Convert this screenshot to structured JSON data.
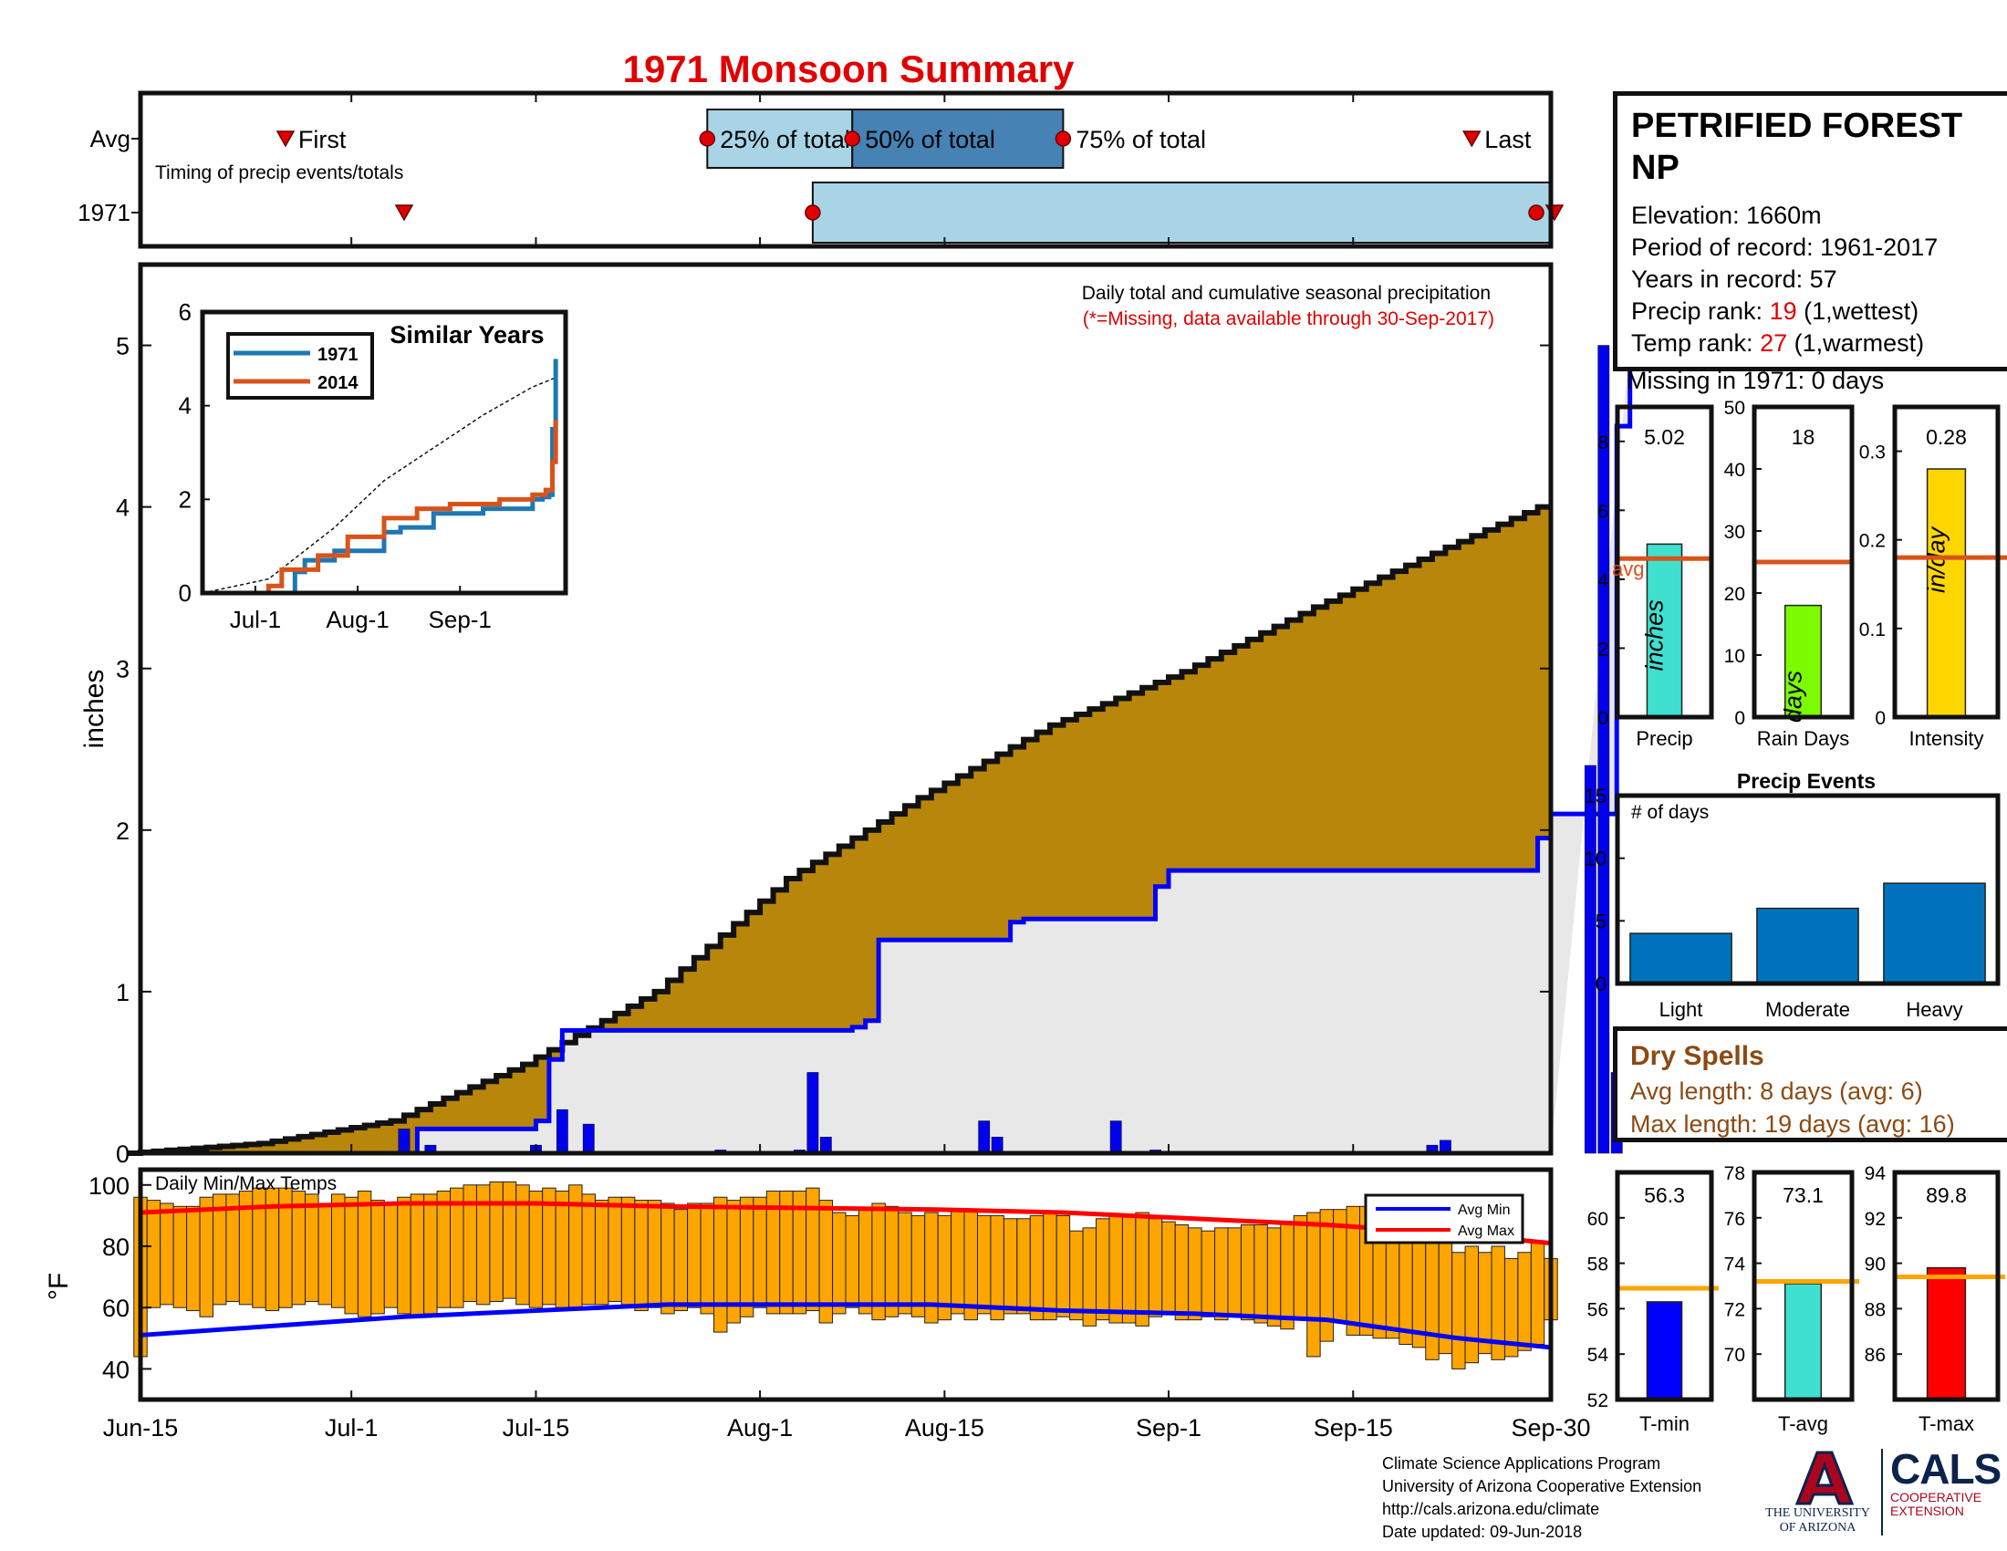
{
  "header": {
    "title": "1971 Monsoon Summary"
  },
  "station": {
    "name_line1": "PETRIFIED FOREST",
    "name_line2": "NP",
    "elevation_label": "Elevation: 1660m",
    "period_label": "Period of record: 1961-2017",
    "years_label": "Years in record: 57",
    "precip_rank_prefix": "Precip rank: ",
    "precip_rank": "19",
    "precip_rank_suffix": " (1,wettest)",
    "temp_rank_prefix": "Temp rank: ",
    "temp_rank": "27",
    "temp_rank_suffix": " (1,warmest)",
    "missing_label": "Missing in 1971: 0 days"
  },
  "dry_spells": {
    "title": "Dry Spells",
    "avg_line": "Avg length: 8 days (avg: 6)",
    "max_line": "Max length: 19 days (avg: 16)"
  },
  "credits": {
    "line1": "Climate Science Applications Program",
    "line2": "University of Arizona Cooperative Extension",
    "line3": "http://cals.arizona.edu/climate",
    "line4": " Date updated: 09-Jun-2018",
    "ua_line1": "THE UNIVERSITY",
    "ua_line2": "OF ARIZONA",
    "cals_big": "CALS",
    "cals_line1": "COOPERATIVE",
    "cals_line2": "EXTENSION"
  },
  "colors": {
    "cum_fill": "#b8860b",
    "cum_line": "#111111",
    "avg_fill": "#e8e8e8",
    "avg_line": "#0000ff",
    "daily_bar": "#0000ee",
    "temp_bar": "#ffa500",
    "avg_min": "#0000ff",
    "avg_max": "#ff0000",
    "title": "#e00000",
    "box_light": "#a8d4e6",
    "box_dark": "#4682b4",
    "similar_1971": "#1f77b4",
    "similar_2014": "#d95319",
    "precip_bar": "#40e0d0",
    "raindays_bar": "#7cfc00",
    "intensity_bar": "#ffd700",
    "avg_ref": "#d95319",
    "events_bar": "#0072bd",
    "tmin_bar": "#0000ff",
    "tavg_bar": "#40e0d0",
    "tmax_bar": "#ff0000",
    "temp_ref": "#ffa500"
  },
  "chart_data": [
    {
      "id": "timing",
      "type": "table",
      "title": "Timing of precip events/totals",
      "x_ticks": [
        "Jun-15",
        "Jul-1",
        "Jul-15",
        "Aug-1",
        "Aug-15",
        "Sep-1",
        "Sep-15",
        "Sep-30"
      ],
      "rows": [
        {
          "label": "Avg",
          "first": "Jun-26",
          "p25": "Jul-28",
          "p50": "Aug-8",
          "p75": "Aug-24",
          "last": "Sep-24",
          "first_label": "First",
          "p25_label": "25% of total",
          "p50_label": "50% of total",
          "p75_label": "75% of total",
          "last_label": "Last"
        },
        {
          "label": "1971",
          "first": "Jul-5",
          "p25": "Aug-5",
          "p75": "Sep-30",
          "last": "Sep-30"
        }
      ]
    },
    {
      "id": "precip",
      "type": "area",
      "annotation_line1": "Daily total and cumulative seasonal precipitation",
      "annotation_line2": "(*=Missing, data available through 30-Sep-2017)",
      "ylabel": "inches",
      "ylim": [
        0,
        5.5
      ],
      "yticks": [
        0,
        1,
        2,
        3,
        4,
        5
      ],
      "x_ticks": [
        "Jun-15",
        "Jul-1",
        "Jul-15",
        "Aug-1",
        "Aug-15",
        "Sep-1",
        "Sep-15",
        "Sep-30"
      ],
      "x_start": "Jun-15",
      "x_end": "Sep-30",
      "cumulative_1971": {
        "day": [
          0,
          20,
          21,
          30,
          31,
          32,
          34,
          35,
          54,
          55,
          56,
          66,
          67,
          68,
          77,
          78,
          79,
          85,
          106,
          107,
          108,
          110,
          111,
          112,
          113
        ],
        "value": [
          0,
          0,
          0.15,
          0.2,
          0.58,
          0.76,
          0.76,
          0.76,
          0.78,
          0.82,
          1.32,
          1.43,
          1.45,
          1.45,
          1.65,
          1.75,
          1.75,
          1.75,
          1.95,
          2.1,
          2.1,
          2.1,
          2.1,
          4.5,
          5.0
        ]
      },
      "average_cumulative": {
        "day": [
          0,
          10,
          20,
          30,
          40,
          50,
          60,
          70,
          80,
          90,
          100,
          107,
          110,
          111
        ],
        "value": [
          0,
          0.06,
          0.2,
          0.55,
          1.0,
          1.7,
          2.2,
          2.65,
          2.98,
          3.38,
          3.75,
          4.0,
          4.33,
          4.43
        ]
      },
      "daily_1971": [
        {
          "day": 20,
          "value": 0.15
        },
        {
          "day": 22,
          "value": 0.05
        },
        {
          "day": 30,
          "value": 0.05
        },
        {
          "day": 32,
          "value": 0.27
        },
        {
          "day": 34,
          "value": 0.18
        },
        {
          "day": 44,
          "value": 0.02
        },
        {
          "day": 50,
          "value": 0.02
        },
        {
          "day": 51,
          "value": 0.5
        },
        {
          "day": 52,
          "value": 0.1
        },
        {
          "day": 64,
          "value": 0.2
        },
        {
          "day": 65,
          "value": 0.1
        },
        {
          "day": 74,
          "value": 0.2
        },
        {
          "day": 77,
          "value": 0.02
        },
        {
          "day": 98,
          "value": 0.05
        },
        {
          "day": 99,
          "value": 0.08
        },
        {
          "day": 110,
          "value": 2.4
        },
        {
          "day": 111,
          "value": 5.0
        },
        {
          "day": 112,
          "value": 0.5
        }
      ]
    },
    {
      "id": "similar_years",
      "type": "line",
      "title": "Similar Years",
      "ylim": [
        0,
        6
      ],
      "yticks": [
        0,
        2,
        4,
        6
      ],
      "x_ticks": [
        "Jul-1",
        "Aug-1",
        "Sep-1"
      ],
      "series": [
        {
          "name": "1971",
          "day": [
            0,
            20,
            28,
            31,
            40,
            55,
            60,
            70,
            85,
            100,
            103,
            105,
            106,
            107
          ],
          "value": [
            0,
            0,
            0.45,
            0.7,
            0.9,
            1.3,
            1.4,
            1.7,
            1.8,
            2.0,
            2.05,
            2.1,
            3.5,
            5.0
          ]
        },
        {
          "name": "2014",
          "day": [
            0,
            20,
            24,
            35,
            44,
            55,
            65,
            75,
            90,
            100,
            104,
            106,
            107
          ],
          "value": [
            0,
            0.15,
            0.5,
            0.8,
            1.2,
            1.6,
            1.8,
            1.9,
            2.0,
            2.1,
            2.2,
            2.8,
            3.7
          ]
        }
      ],
      "average": {
        "day": [
          0,
          20,
          40,
          55,
          70,
          85,
          100,
          107
        ],
        "value": [
          0,
          0.3,
          1.4,
          2.4,
          3.1,
          3.8,
          4.4,
          4.6
        ]
      }
    },
    {
      "id": "temps",
      "type": "bar",
      "title": "Daily Min/Max Temps",
      "ylabel": "°F",
      "ylim": [
        30,
        105
      ],
      "yticks": [
        40,
        60,
        80,
        100
      ],
      "legend": [
        "Avg Min",
        "Avg Max"
      ],
      "x_ticks": [
        "Jun-15",
        "Jul-1",
        "Jul-15",
        "Aug-1",
        "Aug-15",
        "Sep-1",
        "Sep-15",
        "Sep-30"
      ],
      "daily_max": [
        96,
        95,
        94,
        93,
        93,
        96,
        97,
        97,
        98,
        99,
        99,
        99,
        98,
        97,
        94,
        97,
        96,
        98,
        95,
        94,
        96,
        97,
        97,
        98,
        99,
        100,
        100,
        101,
        101,
        100,
        98,
        99,
        98,
        100,
        97,
        95,
        96,
        96,
        95,
        95,
        94,
        92,
        94,
        94,
        96,
        95,
        96,
        96,
        98,
        98,
        98,
        99,
        95,
        91,
        90,
        92,
        94,
        93,
        91,
        90,
        91,
        90,
        92,
        92,
        90,
        90,
        89,
        89,
        90,
        91,
        90,
        85,
        86,
        89,
        90,
        90,
        91,
        89,
        88,
        87,
        86,
        85,
        86,
        86,
        87,
        87,
        86,
        88,
        90,
        91,
        92,
        92,
        93,
        93,
        90,
        88,
        87,
        85,
        84,
        82,
        78,
        80,
        78,
        80,
        76,
        78,
        81,
        76
      ],
      "daily_min": [
        44,
        60,
        61,
        60,
        59,
        57,
        61,
        62,
        61,
        60,
        59,
        60,
        61,
        62,
        61,
        60,
        58,
        57,
        58,
        60,
        58,
        57,
        58,
        60,
        60,
        62,
        61,
        62,
        63,
        61,
        60,
        61,
        60,
        60,
        61,
        61,
        62,
        61,
        59,
        60,
        58,
        59,
        60,
        58,
        52,
        55,
        57,
        60,
        58,
        58,
        58,
        59,
        55,
        58,
        60,
        58,
        56,
        57,
        58,
        57,
        55,
        56,
        58,
        56,
        58,
        56,
        58,
        58,
        56,
        56,
        57,
        56,
        54,
        56,
        55,
        55,
        54,
        57,
        58,
        56,
        56,
        57,
        56,
        58,
        56,
        55,
        54,
        53,
        56,
        44,
        49,
        55,
        51,
        51,
        50,
        50,
        48,
        47,
        43,
        45,
        40,
        42,
        45,
        43,
        44,
        46,
        48,
        56
      ],
      "avg_min": {
        "day": [
          0,
          10,
          20,
          30,
          40,
          60,
          70,
          80,
          90,
          100,
          107
        ],
        "value": [
          51,
          54,
          57,
          59,
          61,
          61,
          59,
          58,
          56,
          50,
          47
        ]
      },
      "avg_max": {
        "day": [
          0,
          10,
          20,
          30,
          40,
          60,
          70,
          80,
          90,
          100,
          107
        ],
        "value": [
          91,
          93,
          94,
          94,
          93,
          92,
          91,
          89,
          87,
          84,
          81
        ]
      }
    },
    {
      "id": "precip_total",
      "type": "bar",
      "ylim": [
        0,
        9
      ],
      "yticks": [
        0,
        2,
        4,
        6,
        8
      ],
      "value": 5.02,
      "value_label": "5.02",
      "avg": 4.6,
      "avg_label": "avg",
      "unit_label": "inches",
      "xlabel": "Precip"
    },
    {
      "id": "rain_days",
      "type": "bar",
      "ylim": [
        0,
        50
      ],
      "yticks": [
        0,
        10,
        20,
        30,
        40,
        50
      ],
      "value": 18,
      "value_label": "18",
      "avg": 25,
      "unit_label": "days",
      "xlabel": "Rain Days"
    },
    {
      "id": "intensity",
      "type": "bar",
      "ylim": [
        0,
        0.35
      ],
      "yticks": [
        0,
        0.1,
        0.2,
        0.3
      ],
      "ytick_labels": [
        "0",
        "0.1",
        "0.2",
        "0.3"
      ],
      "value": 0.28,
      "value_label": "0.28",
      "avg": 0.18,
      "unit_label": "in/day",
      "xlabel": "Intensity"
    },
    {
      "id": "precip_events",
      "type": "bar",
      "title": "Precip Events",
      "ylabel": "# of days",
      "categories": [
        "Light",
        "Moderate",
        "Heavy"
      ],
      "values": [
        4,
        6,
        8
      ],
      "ylim": [
        0,
        15
      ],
      "yticks": [
        0,
        5,
        10,
        15
      ]
    },
    {
      "id": "tmin",
      "type": "bar",
      "ylim": [
        52,
        62
      ],
      "yticks": [
        52,
        54,
        56,
        58,
        60
      ],
      "value": 56.3,
      "value_label": "56.3",
      "avg": 56.9,
      "xlabel": "T-min"
    },
    {
      "id": "tavg",
      "type": "bar",
      "ylim": [
        68,
        78
      ],
      "yticks": [
        70,
        72,
        74,
        76,
        78
      ],
      "value": 73.1,
      "value_label": "73.1",
      "avg": 73.2,
      "xlabel": "T-avg"
    },
    {
      "id": "tmax",
      "type": "bar",
      "ylim": [
        84,
        94
      ],
      "yticks": [
        86,
        88,
        90,
        92,
        94
      ],
      "value": 89.8,
      "value_label": "89.8",
      "avg": 89.4,
      "xlabel": "T-max"
    }
  ]
}
